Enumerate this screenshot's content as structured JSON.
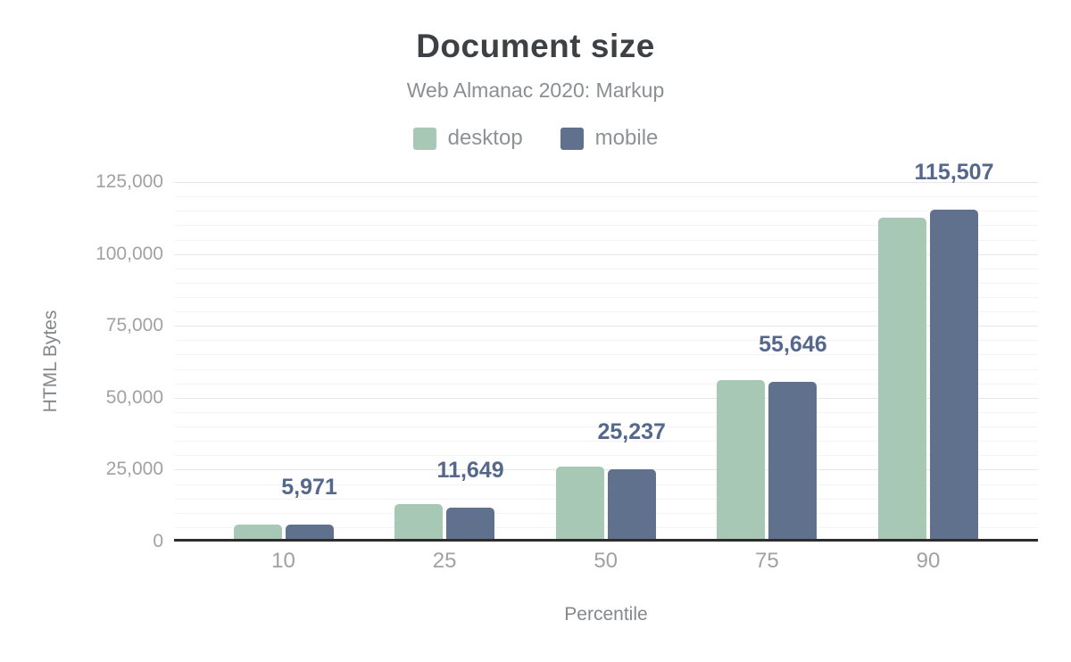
{
  "chart_data": {
    "type": "bar",
    "title": "Document size",
    "subtitle": "Web Almanac 2020: Markup",
    "categories": [
      "10",
      "25",
      "50",
      "75",
      "90"
    ],
    "series": [
      {
        "name": "desktop",
        "color": "#a7c8b5",
        "values": [
          5900,
          13000,
          26000,
          56300,
          112700
        ]
      },
      {
        "name": "mobile",
        "color": "#5f718c",
        "values": [
          5971,
          11649,
          25237,
          55646,
          115507
        ]
      }
    ],
    "data_labels": {
      "on_series": "mobile",
      "texts": [
        "5,971",
        "11,649",
        "25,237",
        "55,646",
        "115,507"
      ],
      "color": "#55688c"
    },
    "xlabel": "Percentile",
    "ylabel": "HTML Bytes",
    "ylim": [
      0,
      125000
    ],
    "ytick_values": [
      0,
      25000,
      50000,
      75000,
      100000,
      125000
    ],
    "ytick_labels": [
      "0",
      "25,000",
      "50,000",
      "75,000",
      "100,000",
      "125,000"
    ],
    "grid": {
      "major_step": 25000,
      "minor_step": 5000,
      "major_color": "#e7e7e7",
      "minor_color": "#f4f4f4"
    },
    "axis_line_color": "#2d2d2d",
    "legend": {
      "position": "top",
      "items": [
        "desktop",
        "mobile"
      ]
    }
  }
}
